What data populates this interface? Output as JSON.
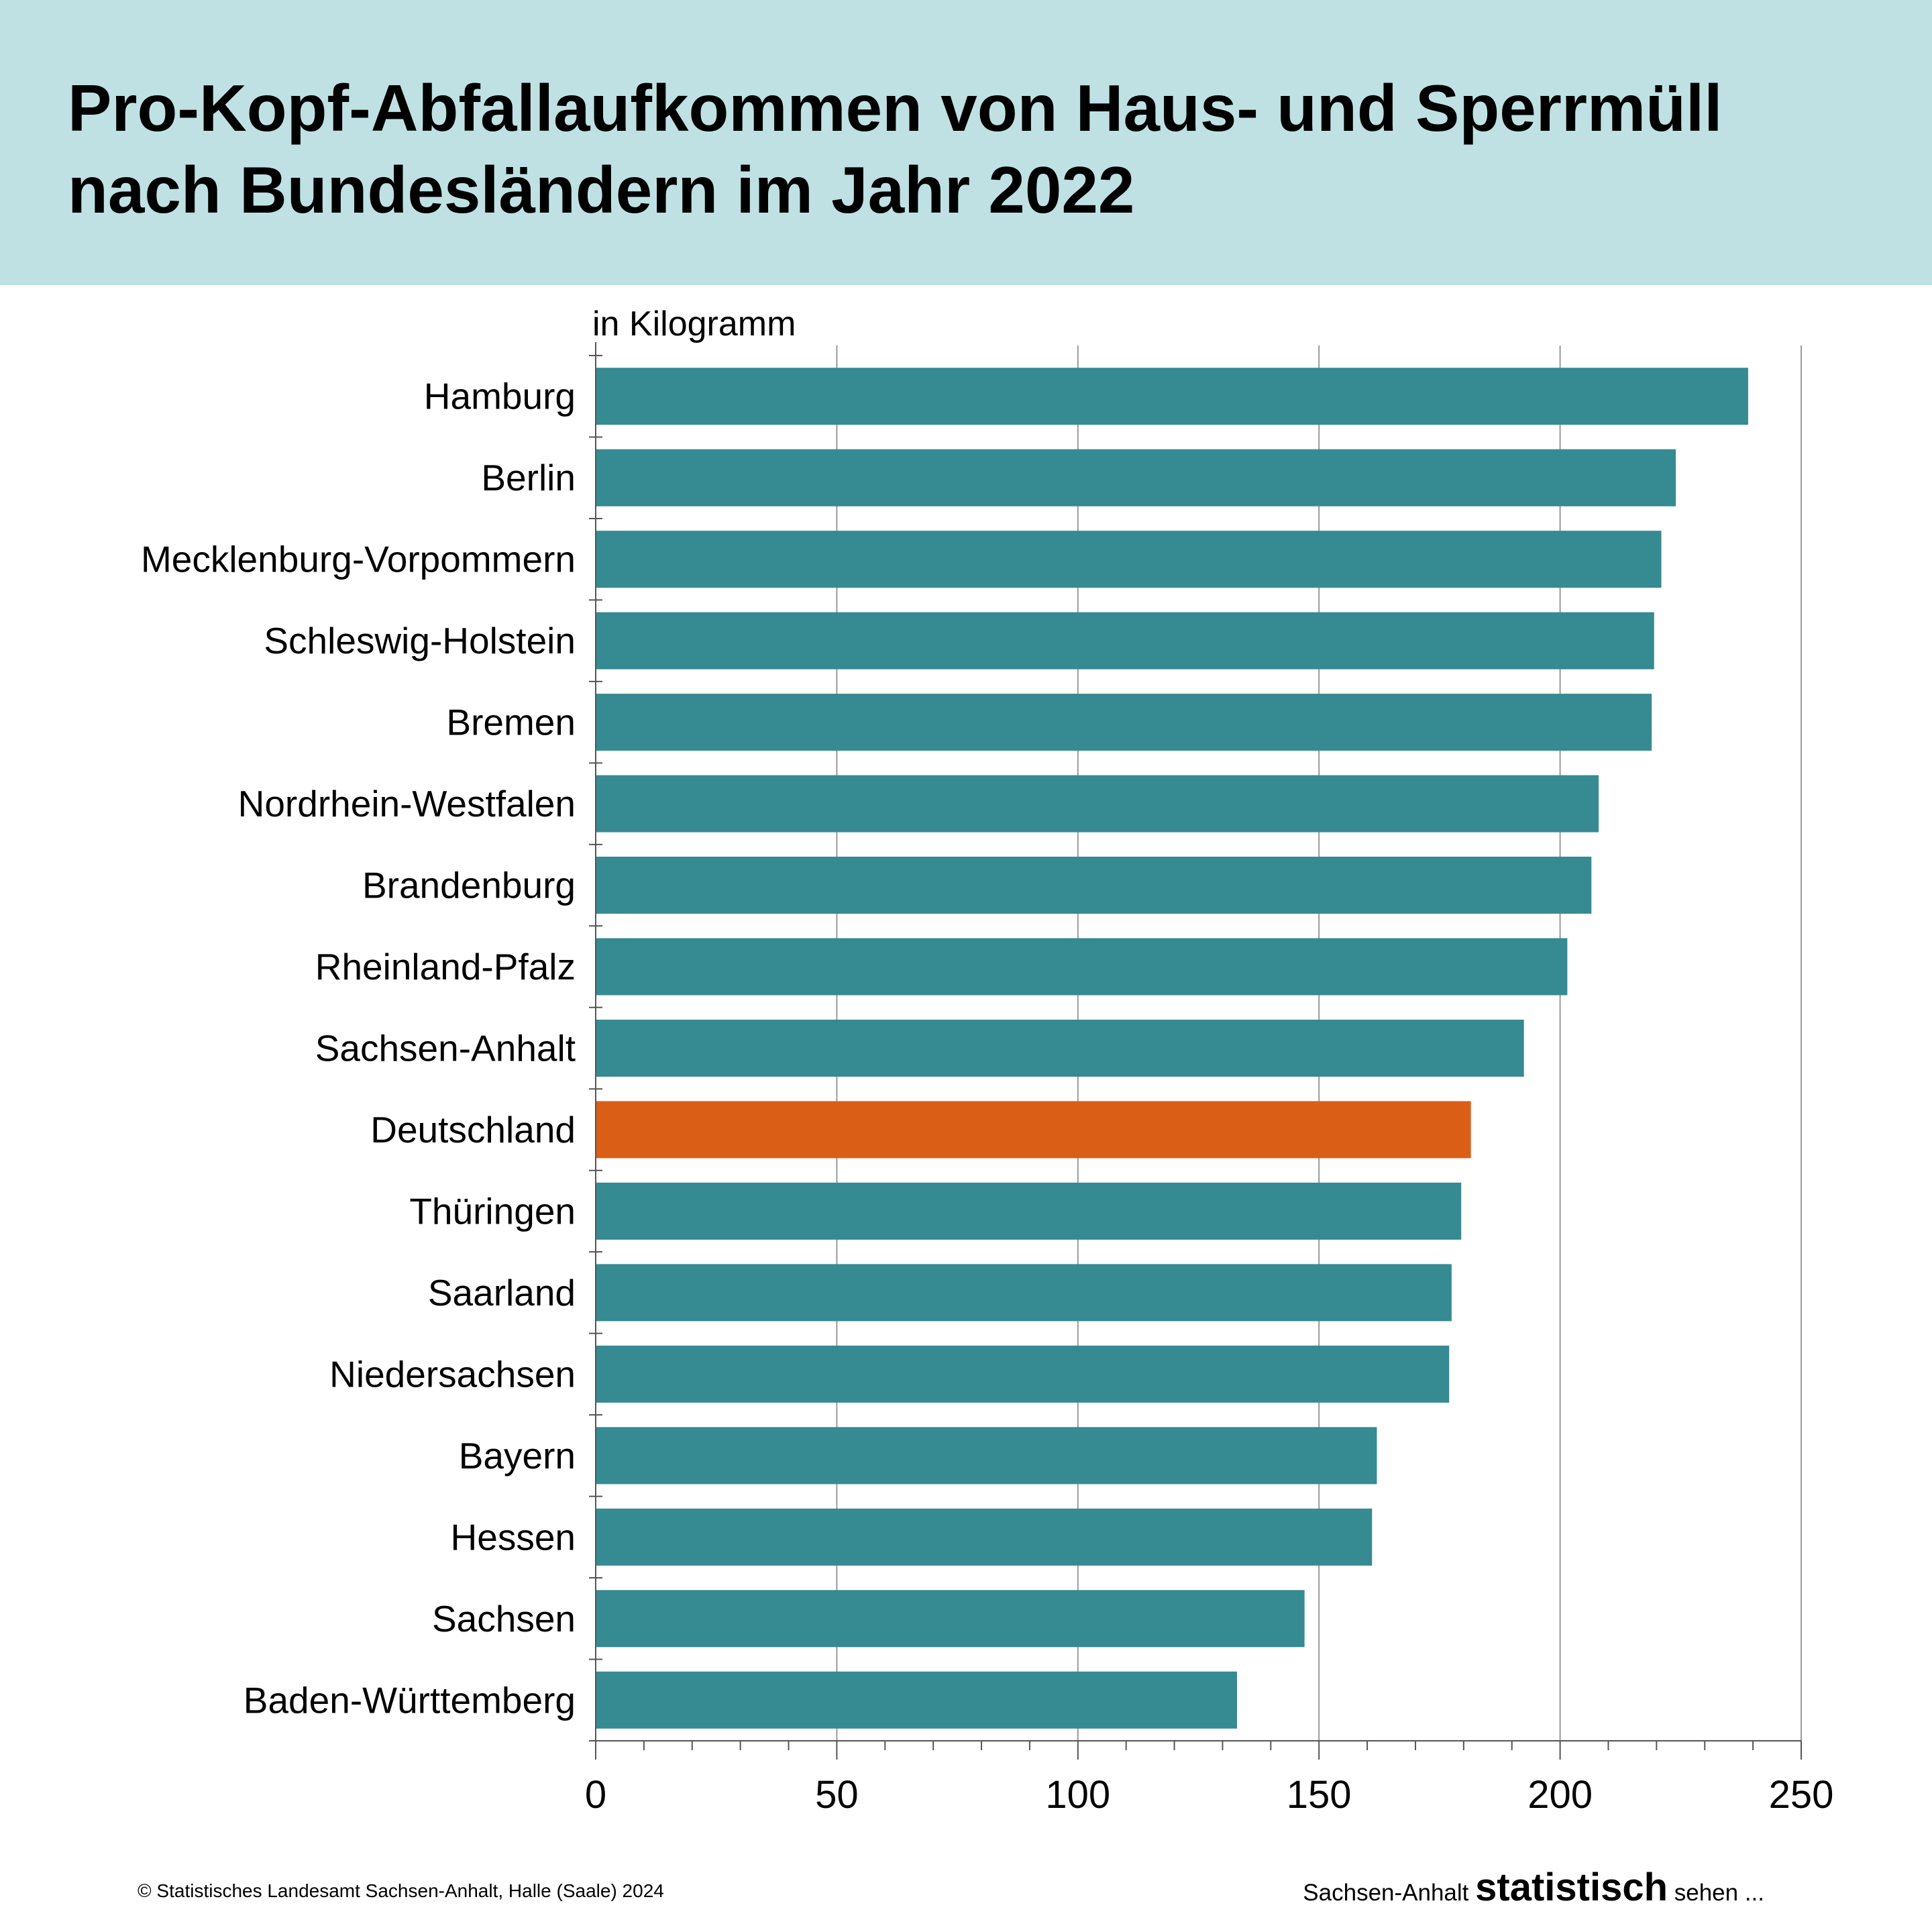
{
  "title": "Pro-Kopf-Abfallaufkommen von Haus- und Sperrmüll\nnach Bundesländern im Jahr 2022",
  "chart_data": {
    "type": "bar",
    "orientation": "horizontal",
    "unit_label": "in Kilogramm",
    "categories": [
      "Hamburg",
      "Berlin",
      "Mecklenburg-Vorpommern",
      "Schleswig-Holstein",
      "Bremen",
      "Nordrhein-Westfalen",
      "Brandenburg",
      "Rheinland-Pfalz",
      "Sachsen-Anhalt",
      "Deutschland",
      "Thüringen",
      "Saarland",
      "Niedersachsen",
      "Bayern",
      "Hessen",
      "Sachsen",
      "Baden-Württemberg"
    ],
    "values": [
      239,
      224,
      221,
      219.5,
      219,
      208,
      206.5,
      201.5,
      192.5,
      181.5,
      179.5,
      177.5,
      177,
      162,
      161,
      147,
      133
    ],
    "highlight_category": "Deutschland",
    "colors": {
      "bar": "#368a92",
      "highlight": "#db5e16",
      "grid": "#9a9a9a"
    },
    "xlim": [
      0,
      250
    ],
    "xticks": [
      0,
      50,
      100,
      150,
      200,
      250
    ],
    "grid": true
  },
  "footer": {
    "copyright": "© Statistisches Landesamt Sachsen-Anhalt, Halle (Saale) 2024",
    "slogan_pre": "Sachsen-Anhalt ",
    "slogan_brand": "statistisch",
    "slogan_post": " sehen ..."
  }
}
